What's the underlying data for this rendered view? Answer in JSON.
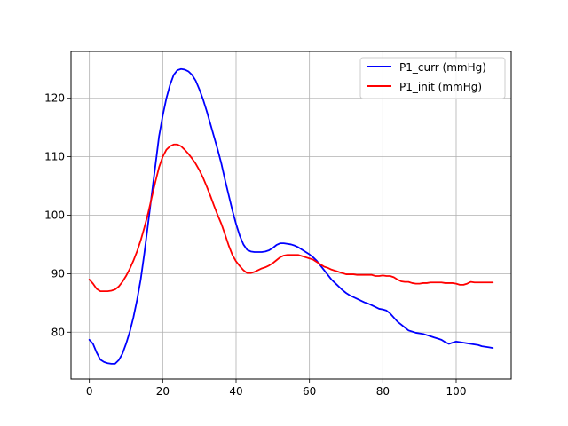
{
  "chart_data": {
    "type": "line",
    "title": "",
    "xlabel": "",
    "ylabel": "",
    "xlim": [
      -5,
      115
    ],
    "ylim": [
      72,
      128
    ],
    "grid": true,
    "legend_position": "top-right",
    "x_ticks": [
      0,
      20,
      40,
      60,
      80,
      100
    ],
    "y_ticks": [
      80,
      90,
      100,
      110,
      120
    ],
    "x_tick_labels": [
      "0",
      "20",
      "40",
      "60",
      "80",
      "100"
    ],
    "y_tick_labels": [
      "80",
      "90",
      "100",
      "110",
      "120"
    ],
    "series": [
      {
        "name": "P1_curr (mmHg)",
        "color": "#0000ff",
        "x": [
          0,
          1,
          2,
          3,
          4,
          5,
          6,
          7,
          8,
          9,
          10,
          11,
          12,
          13,
          14,
          15,
          16,
          17,
          18,
          19,
          20,
          21,
          22,
          23,
          24,
          25,
          26,
          27,
          28,
          29,
          30,
          31,
          32,
          33,
          34,
          35,
          36,
          37,
          38,
          39,
          40,
          41,
          42,
          43,
          44,
          45,
          46,
          47,
          48,
          49,
          50,
          51,
          52,
          53,
          54,
          55,
          56,
          57,
          58,
          59,
          60,
          61,
          62,
          63,
          64,
          65,
          66,
          67,
          68,
          69,
          70,
          71,
          72,
          73,
          74,
          75,
          76,
          77,
          78,
          79,
          80,
          81,
          82,
          83,
          84,
          85,
          86,
          87,
          88,
          89,
          90,
          91,
          92,
          93,
          94,
          95,
          96,
          97,
          98,
          99,
          100,
          101,
          102,
          103,
          104,
          105,
          106,
          107,
          108,
          109,
          110
        ],
        "values": [
          78.7,
          78.0,
          76.5,
          75.3,
          74.9,
          74.7,
          74.6,
          74.6,
          75.2,
          76.3,
          78.0,
          80.0,
          82.5,
          85.5,
          89.0,
          93.5,
          98.5,
          103.5,
          108.5,
          113.5,
          117.0,
          120.0,
          122.3,
          124.0,
          124.8,
          125.0,
          124.9,
          124.6,
          124.0,
          123.0,
          121.5,
          119.8,
          117.8,
          115.6,
          113.4,
          111.2,
          108.8,
          106.0,
          103.4,
          100.8,
          98.5,
          96.5,
          95.0,
          94.1,
          93.8,
          93.7,
          93.7,
          93.7,
          93.8,
          94.0,
          94.4,
          94.9,
          95.2,
          95.2,
          95.1,
          95.0,
          94.8,
          94.5,
          94.1,
          93.7,
          93.3,
          92.8,
          92.2,
          91.4,
          90.6,
          89.8,
          89.0,
          88.4,
          87.8,
          87.2,
          86.7,
          86.3,
          86.0,
          85.7,
          85.4,
          85.1,
          84.9,
          84.6,
          84.3,
          84.0,
          83.9,
          83.7,
          83.2,
          82.5,
          81.8,
          81.3,
          80.8,
          80.3,
          80.1,
          79.9,
          79.8,
          79.7,
          79.5,
          79.3,
          79.1,
          78.9,
          78.7,
          78.3,
          78.0,
          78.2,
          78.4,
          78.3,
          78.2,
          78.1,
          78.0,
          77.9,
          77.8,
          77.6,
          77.5,
          77.4,
          77.3
        ],
        "x_trim": 110
      },
      {
        "name": "P1_init (mmHg)",
        "color": "#ff0000",
        "x": [
          0,
          1,
          2,
          3,
          4,
          5,
          6,
          7,
          8,
          9,
          10,
          11,
          12,
          13,
          14,
          15,
          16,
          17,
          18,
          19,
          20,
          21,
          22,
          23,
          24,
          25,
          26,
          27,
          28,
          29,
          30,
          31,
          32,
          33,
          34,
          35,
          36,
          37,
          38,
          39,
          40,
          41,
          42,
          43,
          44,
          45,
          46,
          47,
          48,
          49,
          50,
          51,
          52,
          53,
          54,
          55,
          56,
          57,
          58,
          59,
          60,
          61,
          62,
          63,
          64,
          65,
          66,
          67,
          68,
          69,
          70,
          71,
          72,
          73,
          74,
          75,
          76,
          77,
          78,
          79,
          80,
          81,
          82,
          83,
          84,
          85,
          86,
          87,
          88,
          89,
          90,
          91,
          92,
          93,
          94,
          95,
          96,
          97,
          98,
          99,
          100,
          101,
          102,
          103,
          104,
          105,
          106,
          107,
          108,
          109,
          110
        ],
        "values": [
          89.0,
          88.3,
          87.4,
          87.0,
          87.0,
          87.0,
          87.1,
          87.3,
          87.8,
          88.6,
          89.6,
          90.8,
          92.2,
          93.8,
          95.7,
          97.9,
          100.3,
          103.0,
          105.7,
          108.2,
          110.0,
          111.2,
          111.8,
          112.1,
          112.1,
          111.8,
          111.2,
          110.5,
          109.7,
          108.8,
          107.7,
          106.4,
          104.9,
          103.3,
          101.6,
          100.0,
          98.5,
          96.7,
          94.8,
          93.2,
          92.1,
          91.3,
          90.6,
          90.1,
          90.1,
          90.3,
          90.6,
          90.9,
          91.1,
          91.4,
          91.8,
          92.3,
          92.8,
          93.1,
          93.2,
          93.2,
          93.2,
          93.2,
          93.0,
          92.8,
          92.6,
          92.4,
          92.0,
          91.6,
          91.2,
          91.0,
          90.7,
          90.5,
          90.3,
          90.1,
          89.9,
          89.9,
          89.9,
          89.8,
          89.8,
          89.8,
          89.8,
          89.8,
          89.6,
          89.6,
          89.7,
          89.6,
          89.6,
          89.4,
          89.0,
          88.7,
          88.6,
          88.6,
          88.4,
          88.3,
          88.3,
          88.4,
          88.4,
          88.5,
          88.5,
          88.5,
          88.5,
          88.4,
          88.4,
          88.4,
          88.3,
          88.1,
          88.1,
          88.3,
          88.6,
          88.5,
          88.5,
          88.5,
          88.5,
          88.5,
          88.5
        ],
        "x_trim": 110
      }
    ]
  }
}
